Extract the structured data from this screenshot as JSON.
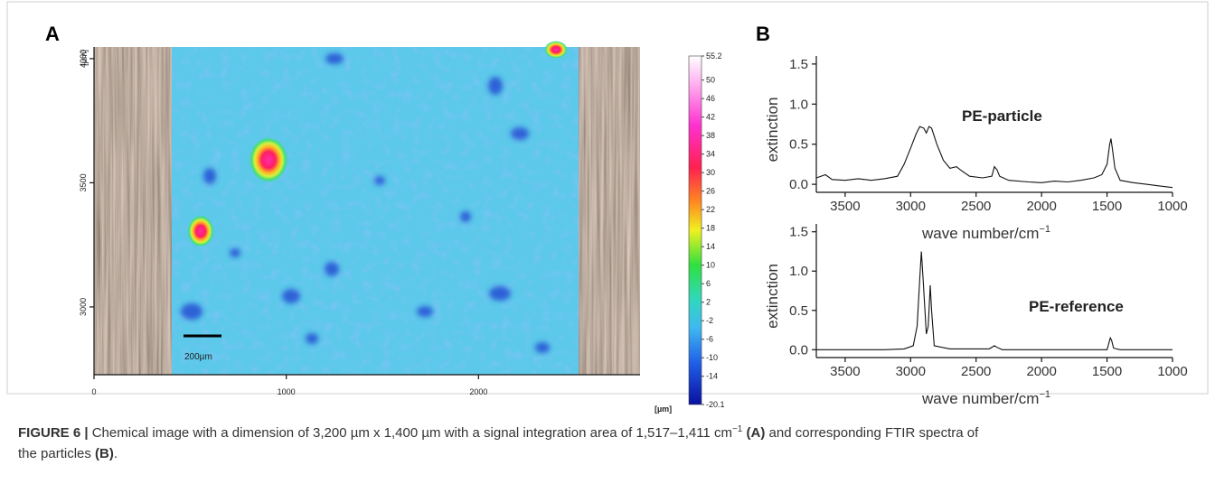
{
  "figure": {
    "panel_a": {
      "label": "A",
      "y_unit": "[µm]",
      "x_unit": "[µm]",
      "xlim": [
        0,
        2840
      ],
      "ylim": [
        2727,
        4047
      ],
      "xticks": [
        0,
        1000,
        2000
      ],
      "yticks": [
        3000,
        3500,
        4000
      ],
      "scale_bar": "200µm",
      "colorbar": {
        "lim": [
          -20.1,
          55.2
        ],
        "ticks": [
          55.2,
          50,
          46,
          42,
          38,
          34,
          30,
          26,
          22,
          18,
          14,
          10,
          6,
          2,
          -2,
          -6,
          -10,
          -14,
          -20.1
        ]
      }
    },
    "panel_b_label": "B",
    "caption": [
      "FIGURE 6 |",
      "Chemical image with a dimension of 3,200 µm x 1,400 µm with a signal integration area of 1,517–1,411 cm",
      "−1",
      "(A)",
      "and corresponding FTIR spectra of",
      "the particles",
      "(B)",
      "."
    ]
  },
  "chart_data": [
    {
      "type": "line",
      "annotation": "PE-particle",
      "ylabel": "extinction",
      "xlabel": "wave number/cm",
      "xlabel_sup": "−1",
      "color": "#111111",
      "x": [
        3720,
        3650,
        3600,
        3500,
        3400,
        3300,
        3200,
        3100,
        3050,
        3000,
        2960,
        2930,
        2900,
        2880,
        2860,
        2840,
        2800,
        2750,
        2700,
        2650,
        2620,
        2550,
        2450,
        2380,
        2360,
        2340,
        2320,
        2250,
        2100,
        2000,
        1900,
        1800,
        1700,
        1600,
        1540,
        1500,
        1480,
        1470,
        1460,
        1440,
        1400,
        1300,
        1200,
        1100,
        1000
      ],
      "values": [
        0.08,
        0.12,
        0.06,
        0.05,
        0.07,
        0.05,
        0.07,
        0.1,
        0.25,
        0.45,
        0.62,
        0.72,
        0.7,
        0.64,
        0.72,
        0.7,
        0.5,
        0.3,
        0.2,
        0.22,
        0.18,
        0.1,
        0.08,
        0.1,
        0.22,
        0.18,
        0.1,
        0.05,
        0.03,
        0.02,
        0.04,
        0.03,
        0.05,
        0.08,
        0.12,
        0.25,
        0.5,
        0.57,
        0.45,
        0.2,
        0.05,
        0.02,
        0.0,
        -0.02,
        -0.04
      ],
      "xlim": [
        3720,
        1000
      ],
      "ylim": [
        -0.1,
        1.6
      ],
      "xticks": [
        3500,
        3000,
        2500,
        2000,
        1500,
        1000
      ],
      "yticks": [
        {
          "value": 0,
          "label": "0.0"
        },
        {
          "value": 0.5,
          "label": "0.5"
        },
        {
          "value": 1,
          "label": "1.0"
        },
        {
          "value": 1.5,
          "label": "1.5"
        }
      ]
    },
    {
      "type": "line",
      "annotation": "PE-reference",
      "ylabel": "extinction",
      "xlabel": "wave number/cm",
      "xlabel_sup": "−1",
      "color": "#111111",
      "x": [
        3720,
        3200,
        3050,
        2980,
        2950,
        2930,
        2918,
        2905,
        2880,
        2865,
        2850,
        2840,
        2820,
        2700,
        2400,
        2360,
        2340,
        2300,
        1500,
        1475,
        1465,
        1450,
        1400,
        1000
      ],
      "values": [
        0,
        0,
        0.01,
        0.05,
        0.3,
        0.9,
        1.25,
        0.9,
        0.2,
        0.3,
        0.82,
        0.5,
        0.05,
        0.01,
        0.01,
        0.05,
        0.03,
        0,
        0,
        0.15,
        0.12,
        0.02,
        0,
        0
      ],
      "xlim": [
        3720,
        1000
      ],
      "ylim": [
        -0.1,
        1.6
      ],
      "xticks": [
        3500,
        3000,
        2500,
        2000,
        1500,
        1000
      ],
      "yticks": [
        {
          "value": 0,
          "label": "0.0"
        },
        {
          "value": 0.5,
          "label": "0.5"
        },
        {
          "value": 1,
          "label": "1.0"
        },
        {
          "value": 1.5,
          "label": "1.5"
        }
      ]
    }
  ]
}
